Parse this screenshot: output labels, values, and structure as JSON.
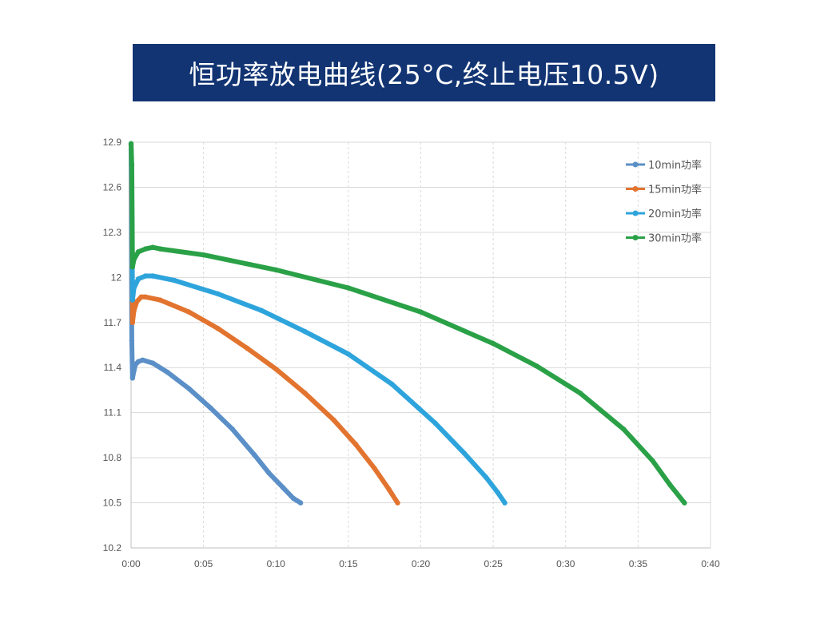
{
  "title": "恒功率放电曲线(25°C,终止电压10.5V)",
  "colors": {
    "banner": "#123473",
    "series_10": "#5b8fc7",
    "series_15": "#e2742f",
    "series_20": "#2ea4dc",
    "series_30": "#2aa147",
    "grid": "#d9d9d9"
  },
  "chart_data": {
    "type": "line",
    "title": "恒功率放电曲线(25°C,终止电压10.5V)",
    "xlabel": "",
    "ylabel": "",
    "xlim_minutes": [
      0,
      40
    ],
    "ylim": [
      10.2,
      12.9
    ],
    "x_ticks": [
      "0:00",
      "0:05",
      "0:10",
      "0:15",
      "0:20",
      "0:25",
      "0:30",
      "0:35",
      "0:40"
    ],
    "y_ticks": [
      "10.2",
      "10.5",
      "10.8",
      "11.1",
      "11.4",
      "11.7",
      "12",
      "12.3",
      "12.6",
      "12.9"
    ],
    "grid": true,
    "legend_position": "top-right",
    "series": [
      {
        "name": "10min功率",
        "color": "#5b8fc7",
        "x_minutes": [
          0.0,
          0.05,
          0.1,
          0.2,
          0.3,
          0.5,
          0.8,
          1.5,
          2.5,
          4.0,
          5.5,
          7.0,
          8.5,
          9.5,
          10.5,
          11.2,
          11.7
        ],
        "values": [
          12.85,
          11.58,
          11.33,
          11.38,
          11.42,
          11.44,
          11.45,
          11.43,
          11.37,
          11.26,
          11.13,
          10.99,
          10.82,
          10.7,
          10.6,
          10.53,
          10.5
        ]
      },
      {
        "name": "15min功率",
        "color": "#e2742f",
        "x_minutes": [
          0.0,
          0.05,
          0.1,
          0.2,
          0.4,
          0.7,
          1.0,
          2.0,
          4.0,
          6.0,
          8.0,
          10.0,
          12.0,
          14.0,
          15.5,
          16.8,
          17.8,
          18.4
        ],
        "values": [
          12.88,
          12.42,
          11.7,
          11.78,
          11.84,
          11.87,
          11.87,
          11.85,
          11.77,
          11.66,
          11.53,
          11.39,
          11.23,
          11.05,
          10.89,
          10.73,
          10.59,
          10.5
        ]
      },
      {
        "name": "20min功率",
        "color": "#2ea4dc",
        "x_minutes": [
          0.0,
          0.05,
          0.1,
          0.2,
          0.5,
          1.0,
          1.5,
          3.0,
          6.0,
          9.0,
          12.0,
          15.0,
          18.0,
          21.0,
          23.0,
          24.5,
          25.3,
          25.8
        ],
        "values": [
          12.89,
          12.58,
          11.85,
          11.93,
          11.99,
          12.01,
          12.01,
          11.98,
          11.89,
          11.78,
          11.64,
          11.49,
          11.29,
          11.03,
          10.83,
          10.67,
          10.57,
          10.5
        ]
      },
      {
        "name": "30min功率",
        "color": "#2aa147",
        "x_minutes": [
          0.0,
          0.05,
          0.1,
          0.2,
          0.5,
          1.0,
          1.5,
          2.0,
          5.0,
          10.0,
          15.0,
          20.0,
          25.0,
          28.0,
          31.0,
          34.0,
          36.0,
          37.2,
          38.2
        ],
        "values": [
          12.89,
          12.75,
          12.07,
          12.12,
          12.17,
          12.19,
          12.2,
          12.19,
          12.15,
          12.05,
          11.93,
          11.77,
          11.56,
          11.41,
          11.23,
          10.99,
          10.78,
          10.62,
          10.5
        ]
      }
    ]
  }
}
